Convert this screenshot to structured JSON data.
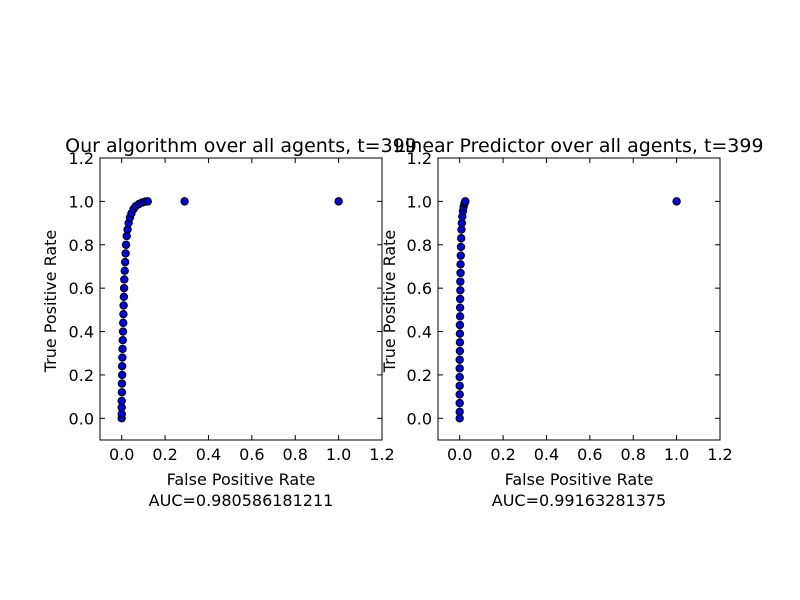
{
  "colors": {
    "background": "#ffffff",
    "marker_fill": "#0000ff",
    "marker_edge": "#000000",
    "axes": "#000000"
  },
  "chart_data": [
    {
      "type": "scatter",
      "title": "Our algorithm over all agents, t=399",
      "xlabel": "False Positive Rate",
      "ylabel": "True Positive Rate",
      "annotation": "AUC=0.980586181211",
      "xlim": [
        -0.1,
        1.2
      ],
      "ylim": [
        -0.1,
        1.2
      ],
      "xticks": [
        0.0,
        0.2,
        0.4,
        0.6,
        0.8,
        1.0,
        1.2
      ],
      "yticks": [
        0.0,
        0.2,
        0.4,
        0.6,
        0.8,
        1.0,
        1.2
      ],
      "xtick_labels": [
        "0.0",
        "0.2",
        "0.4",
        "0.6",
        "0.8",
        "1.0",
        "1.2"
      ],
      "ytick_labels": [
        "0.0",
        "0.2",
        "0.4",
        "0.6",
        "0.8",
        "1.0",
        "1.2"
      ],
      "grid": false,
      "points": [
        [
          0.0,
          0.0
        ],
        [
          0.0,
          0.02
        ],
        [
          0.0,
          0.05
        ],
        [
          0.0,
          0.08
        ],
        [
          0.001,
          0.12
        ],
        [
          0.001,
          0.16
        ],
        [
          0.002,
          0.2
        ],
        [
          0.002,
          0.24
        ],
        [
          0.003,
          0.28
        ],
        [
          0.004,
          0.32
        ],
        [
          0.005,
          0.36
        ],
        [
          0.006,
          0.4
        ],
        [
          0.007,
          0.44
        ],
        [
          0.008,
          0.48
        ],
        [
          0.009,
          0.52
        ],
        [
          0.01,
          0.56
        ],
        [
          0.011,
          0.6
        ],
        [
          0.012,
          0.64
        ],
        [
          0.014,
          0.68
        ],
        [
          0.016,
          0.72
        ],
        [
          0.018,
          0.76
        ],
        [
          0.02,
          0.8
        ],
        [
          0.023,
          0.84
        ],
        [
          0.027,
          0.87
        ],
        [
          0.032,
          0.9
        ],
        [
          0.038,
          0.925
        ],
        [
          0.045,
          0.945
        ],
        [
          0.055,
          0.965
        ],
        [
          0.065,
          0.978
        ],
        [
          0.08,
          0.988
        ],
        [
          0.095,
          0.995
        ],
        [
          0.11,
          0.999
        ],
        [
          0.12,
          1.0
        ],
        [
          0.29,
          1.0
        ],
        [
          1.0,
          1.0
        ]
      ]
    },
    {
      "type": "scatter",
      "title": "Linear Predictor over all agents, t=399",
      "xlabel": "False Positive Rate",
      "ylabel": "True Positive Rate",
      "annotation": "AUC=0.99163281375",
      "xlim": [
        -0.1,
        1.2
      ],
      "ylim": [
        -0.1,
        1.2
      ],
      "xticks": [
        0.0,
        0.2,
        0.4,
        0.6,
        0.8,
        1.0,
        1.2
      ],
      "yticks": [
        0.0,
        0.2,
        0.4,
        0.6,
        0.8,
        1.0,
        1.2
      ],
      "xtick_labels": [
        "0.0",
        "0.2",
        "0.4",
        "0.6",
        "0.8",
        "1.0",
        "1.2"
      ],
      "ytick_labels": [
        "0.0",
        "0.2",
        "0.4",
        "0.6",
        "0.8",
        "1.0",
        "1.2"
      ],
      "grid": false,
      "points": [
        [
          0.0,
          0.0
        ],
        [
          0.0,
          0.03
        ],
        [
          0.0,
          0.07
        ],
        [
          0.0,
          0.11
        ],
        [
          0.0,
          0.15
        ],
        [
          0.0,
          0.19
        ],
        [
          0.0,
          0.23
        ],
        [
          0.0,
          0.27
        ],
        [
          0.001,
          0.31
        ],
        [
          0.001,
          0.35
        ],
        [
          0.001,
          0.39
        ],
        [
          0.001,
          0.43
        ],
        [
          0.002,
          0.47
        ],
        [
          0.002,
          0.51
        ],
        [
          0.002,
          0.55
        ],
        [
          0.003,
          0.59
        ],
        [
          0.003,
          0.63
        ],
        [
          0.004,
          0.67
        ],
        [
          0.004,
          0.71
        ],
        [
          0.005,
          0.75
        ],
        [
          0.006,
          0.79
        ],
        [
          0.007,
          0.83
        ],
        [
          0.008,
          0.87
        ],
        [
          0.01,
          0.9
        ],
        [
          0.012,
          0.93
        ],
        [
          0.015,
          0.955
        ],
        [
          0.018,
          0.975
        ],
        [
          0.022,
          0.99
        ],
        [
          0.025,
          0.998
        ],
        [
          0.026,
          1.0
        ],
        [
          1.0,
          1.0
        ]
      ]
    }
  ]
}
